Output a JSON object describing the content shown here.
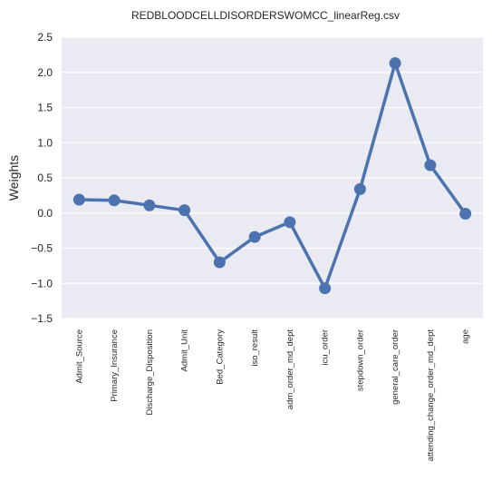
{
  "chart_data": {
    "type": "line",
    "title": "REDBLOODCELLDISORDERSWOMCC_linearReg.csv",
    "xlabel": "",
    "ylabel": "Weights",
    "categories": [
      "Admit_Source",
      "Primary_Insurance",
      "Discharge_Disposition",
      "Admit_Unit",
      "Bed_Category",
      "iso_result",
      "adm_order_md_dept",
      "icu_order",
      "stepdown_order",
      "general_care_order",
      "attending_change_order_md_dept",
      "age"
    ],
    "values": [
      0.19,
      0.18,
      0.11,
      0.04,
      -0.7,
      -0.34,
      -0.13,
      -1.07,
      0.34,
      2.13,
      0.68,
      -0.01
    ],
    "ylim": [
      -1.5,
      2.5
    ],
    "yticks": [
      -1.5,
      -1.0,
      -0.5,
      0.0,
      0.5,
      1.0,
      1.5,
      2.0,
      2.5
    ],
    "ytick_labels": [
      "−1.5",
      "−1.0",
      "−0.5",
      "0.0",
      "0.5",
      "1.0",
      "1.5",
      "2.0",
      "2.5"
    ],
    "grid": true,
    "legend": "none",
    "colors": {
      "series": "#4c72b0",
      "plot_background": "#eaeaf2",
      "grid": "#ffffff"
    }
  }
}
